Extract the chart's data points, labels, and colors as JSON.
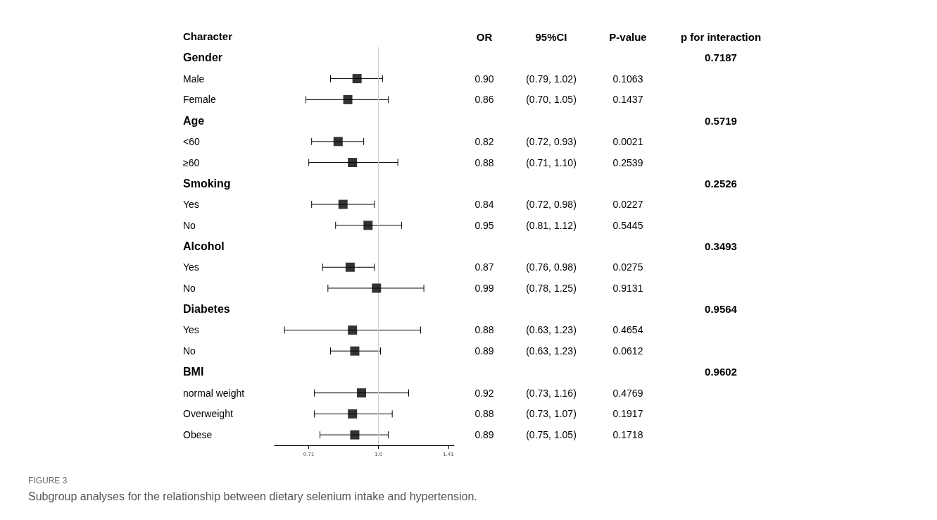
{
  "chart_data": {
    "type": "scatter",
    "title": "FIGURE 3",
    "subtitle": "Subgroup analyses for the relationship between dietary selenium intake and hypertension.",
    "ylabel": "Character",
    "categories": [
      "Gender",
      "Male",
      "Female",
      "Age",
      "<60",
      "≥60",
      "Smoking",
      "Yes",
      "No",
      "Alcohol",
      "Yes",
      "No",
      "Diabetes",
      "Yes",
      "No",
      "BMI",
      "normal weight",
      "Overweight",
      "Obese"
    ],
    "values": [
      null,
      0.9,
      0.86,
      null,
      0.82,
      0.88,
      null,
      0.84,
      0.95,
      null,
      0.87,
      0.99,
      null,
      0.88,
      0.89,
      null,
      0.92,
      0.88,
      0.89
    ],
    "value_labels": [
      null,
      "0.90",
      "0.86",
      null,
      "0.82",
      "0.88",
      null,
      "0.84",
      "0.95",
      null,
      "0.87",
      "0.99",
      null,
      "0.88",
      "0.89",
      null,
      "0.92",
      "0.88",
      "0.89"
    ],
    "errors": [
      null,
      [
        0.79,
        1.02
      ],
      [
        0.7,
        1.05
      ],
      null,
      [
        0.72,
        0.93
      ],
      [
        0.71,
        1.1
      ],
      null,
      [
        0.72,
        0.98
      ],
      [
        0.81,
        1.12
      ],
      null,
      [
        0.76,
        0.98
      ],
      [
        0.78,
        1.25
      ],
      null,
      [
        0.63,
        1.23
      ],
      [
        0.79,
        1.01
      ],
      null,
      [
        0.73,
        1.16
      ],
      [
        0.73,
        1.07
      ],
      [
        0.75,
        1.05
      ]
    ],
    "color": "#000000",
    "marker": "square",
    "log": "x",
    "grid": false,
    "orientation": "horizontal",
    "xlim": [
      0.6,
      1.45
    ],
    "xticks": [
      0.71,
      {
        "value": 1,
        "label": "1.0"
      },
      1.41
    ],
    "ref_lines": [
      {
        "axis": "x",
        "value": 1,
        "color": "#cccccc"
      }
    ],
    "annotations": [
      "OR",
      "95%CI",
      "P-value",
      "p for interaction",
      "(0.79, 1.02)",
      "(0.70, 1.05)",
      "(0.72, 0.93)",
      "(0.71, 1.10)",
      "(0.72, 0.98)",
      "(0.81, 1.12)",
      "(0.76, 0.98)",
      "(0.78, 1.25)",
      "(0.63, 1.23)",
      "(0.63, 1.23)",
      "(0.73, 1.16)",
      "(0.73, 1.07)",
      "(0.75, 1.05)",
      "0.1063",
      "0.1437",
      "0.0021",
      "0.2539",
      "0.0227",
      "0.5445",
      "0.0275",
      "0.9131",
      "0.4654",
      "0.0612",
      "0.4769",
      "0.1917",
      "0.1718",
      "0.7187",
      "0.5719",
      "0.2526",
      "0.3493",
      "0.9564",
      "0.9602"
    ]
  }
}
